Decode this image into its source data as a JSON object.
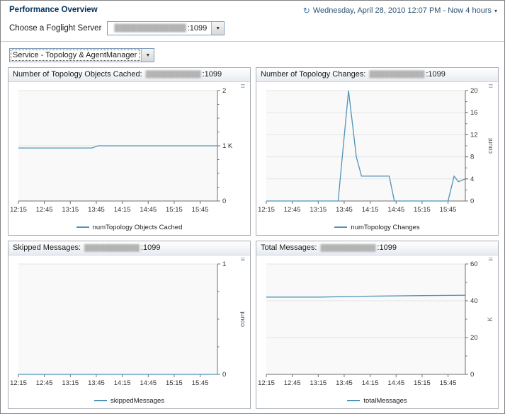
{
  "header": {
    "title": "Performance Overview",
    "datetime": "Wednesday, April 28, 2010 12:07 PM - Now 4 hours",
    "caret": "▾"
  },
  "icons": {
    "clock": "↻",
    "dropdown_arrow": "▼",
    "chart_options": "≡"
  },
  "server_picker": {
    "label": "Choose a Foglight Server",
    "masked": "█████████████",
    "port": ":1099"
  },
  "service_picker": {
    "value": "Service - Topology & AgentManager"
  },
  "colors": {
    "accent": "#4f93b8",
    "axis": "#6e6e6e",
    "grid": "#e4e4e4",
    "plot_bg": "#f9f9f9"
  },
  "charts": [
    {
      "title": "Number of Topology Objects Cached:",
      "masked": "███████████",
      "port": ":1099",
      "legend": "numTopology Objects Cached",
      "chart_data": {
        "type": "line",
        "x_ticks": [
          "12:15",
          "12:45",
          "13:15",
          "13:45",
          "14:15",
          "14:45",
          "15:15",
          "15:45"
        ],
        "x_tick_minutes": [
          0,
          30,
          60,
          90,
          120,
          150,
          180,
          210
        ],
        "x_domain": [
          0,
          230
        ],
        "ylim": [
          0,
          2
        ],
        "yticks": [
          {
            "value": 0,
            "label": "0"
          },
          {
            "value": 1,
            "label": "1 K"
          },
          {
            "value": 2,
            "label": "2"
          }
        ],
        "yminor_step": 0.25,
        "ylabel": "",
        "y_unit": "K",
        "series": [
          {
            "name": "numTopology Objects Cached",
            "points": [
              [
                0,
                0.96
              ],
              [
                45,
                0.96
              ],
              [
                85,
                0.96
              ],
              [
                92,
                1.0
              ],
              [
                150,
                1.0
              ],
              [
                230,
                1.0
              ]
            ]
          }
        ]
      }
    },
    {
      "title": "Number of Topology Changes:",
      "masked": "███████████",
      "port": ":1099",
      "legend": "numTopology Changes",
      "chart_data": {
        "type": "line",
        "x_ticks": [
          "12:15",
          "12:45",
          "13:15",
          "13:45",
          "14:15",
          "14:45",
          "15:15",
          "15:45"
        ],
        "x_tick_minutes": [
          0,
          30,
          60,
          90,
          120,
          150,
          180,
          210
        ],
        "x_domain": [
          0,
          230
        ],
        "ylim": [
          0,
          20
        ],
        "yticks": [
          {
            "value": 0,
            "label": "0"
          },
          {
            "value": 4,
            "label": "4"
          },
          {
            "value": 8,
            "label": "8"
          },
          {
            "value": 12,
            "label": "12"
          },
          {
            "value": 16,
            "label": "16"
          },
          {
            "value": 20,
            "label": "20"
          }
        ],
        "yminor_step": 2,
        "ylabel": "count",
        "series": [
          {
            "name": "numTopology Changes",
            "points": [
              [
                0,
                0
              ],
              [
                55,
                0
              ],
              [
                83,
                0
              ],
              [
                95,
                20
              ],
              [
                104,
                8
              ],
              [
                110,
                4.5
              ],
              [
                142,
                4.5
              ],
              [
                148,
                0
              ],
              [
                210,
                0
              ],
              [
                217,
                4.5
              ],
              [
                222,
                3.5
              ],
              [
                230,
                4
              ]
            ]
          }
        ]
      }
    },
    {
      "title": "Skipped Messages:",
      "masked": "███████████",
      "port": ":1099",
      "legend": "skippedMessages",
      "chart_data": {
        "type": "line",
        "x_ticks": [
          "12:15",
          "12:45",
          "13:15",
          "13:45",
          "14:15",
          "14:45",
          "15:15",
          "15:45"
        ],
        "x_tick_minutes": [
          0,
          30,
          60,
          90,
          120,
          150,
          180,
          210
        ],
        "x_domain": [
          0,
          230
        ],
        "ylim": [
          0,
          1
        ],
        "yticks": [
          {
            "value": 0,
            "label": "0"
          },
          {
            "value": 1,
            "label": "1"
          }
        ],
        "yminor_step": 0.25,
        "ylabel": "count",
        "series": [
          {
            "name": "skippedMessages",
            "points": [
              [
                0,
                0
              ],
              [
                230,
                0
              ]
            ]
          }
        ]
      }
    },
    {
      "title": "Total Messages:",
      "masked": "███████████",
      "port": ":1099",
      "legend": "totalMessages",
      "chart_data": {
        "type": "line",
        "x_ticks": [
          "12:15",
          "12:45",
          "13:15",
          "13:45",
          "14:15",
          "14:45",
          "15:15",
          "15:45"
        ],
        "x_tick_minutes": [
          0,
          30,
          60,
          90,
          120,
          150,
          180,
          210
        ],
        "x_domain": [
          0,
          230
        ],
        "ylim": [
          0,
          60
        ],
        "yticks": [
          {
            "value": 0,
            "label": "0"
          },
          {
            "value": 20,
            "label": "20"
          },
          {
            "value": 40,
            "label": "40"
          },
          {
            "value": 60,
            "label": "60"
          }
        ],
        "yminor_step": 10,
        "ylabel": "K",
        "y_unit": "K",
        "series": [
          {
            "name": "totalMessages",
            "points": [
              [
                0,
                42
              ],
              [
                60,
                42
              ],
              [
                120,
                42.5
              ],
              [
                180,
                42.8
              ],
              [
                230,
                43
              ]
            ]
          }
        ]
      }
    }
  ]
}
